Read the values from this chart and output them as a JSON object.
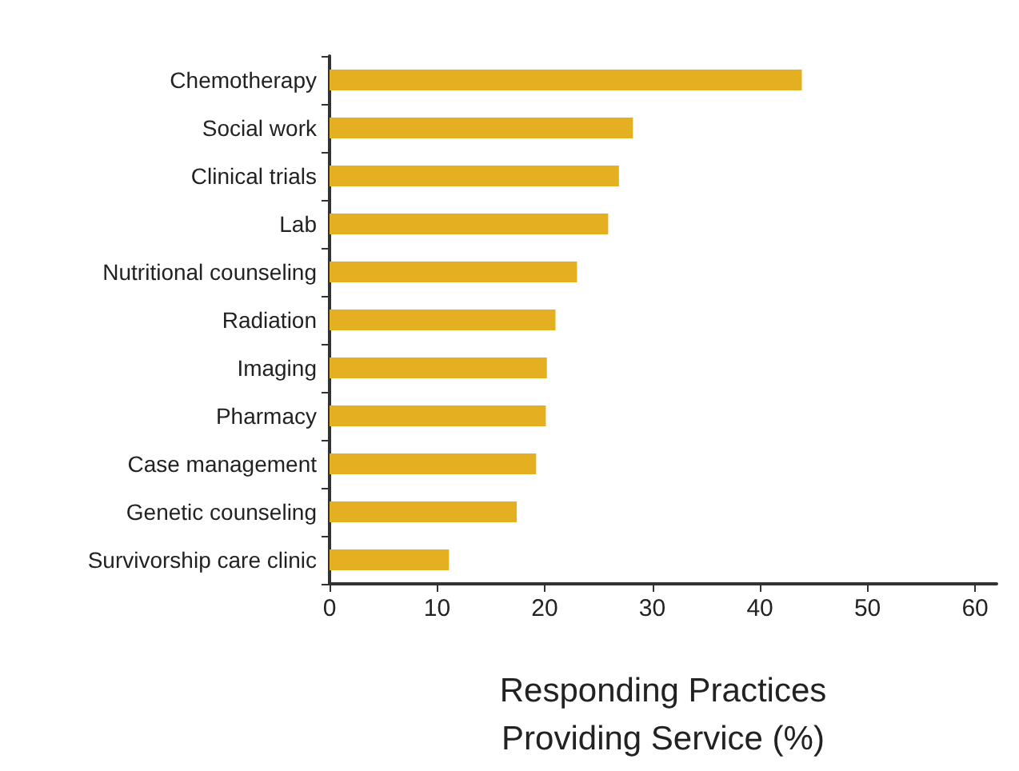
{
  "chart_data": {
    "type": "bar",
    "orientation": "horizontal",
    "xlabel": "Responding Practices\nProviding Service (%)",
    "categories": [
      "Chemotherapy",
      "Social work",
      "Clinical trials",
      "Lab",
      "Nutritional counseling",
      "Radiation",
      "Imaging",
      "Pharmacy",
      "Case management",
      "Genetic counseling",
      "Survivorship care clinic"
    ],
    "values": [
      43.9,
      28.2,
      26.9,
      25.9,
      23.0,
      21.0,
      20.2,
      20.1,
      19.2,
      17.4,
      11.1
    ],
    "color": "#e4b021",
    "xlim": [
      0,
      62
    ],
    "xticks": [
      0,
      10,
      20,
      30,
      40,
      50,
      60
    ],
    "grid": false
  }
}
